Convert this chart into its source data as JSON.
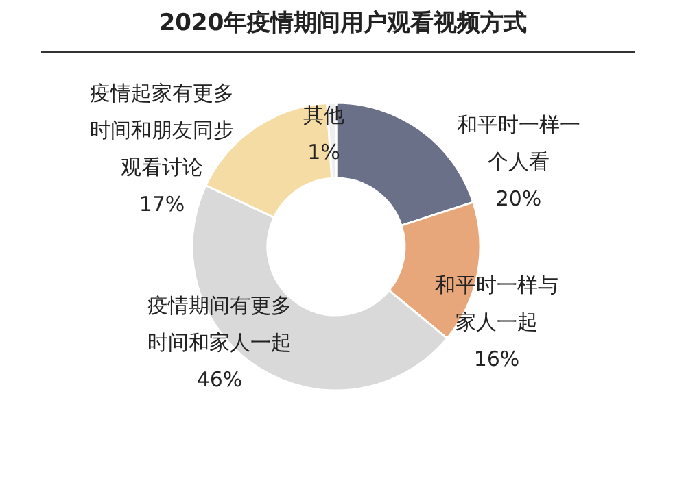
{
  "chart_data": {
    "type": "donut",
    "title": "2020年疫情期间用户观看视频方式",
    "categories": [
      "和平时一样一个人看",
      "和平时一样与家人一起",
      "疫情期间有更多时间和家人一起",
      "疫情起家有更多时间和朋友同步观看讨论",
      "其他"
    ],
    "values": [
      20,
      16,
      46,
      17,
      1
    ],
    "value_labels": [
      "20%",
      "16%",
      "46%",
      "17%",
      "1%"
    ],
    "colors": [
      "#6b7089",
      "#e8a77a",
      "#d9d9d9",
      "#f5dca5",
      "#eeeeee"
    ],
    "legend": false
  }
}
